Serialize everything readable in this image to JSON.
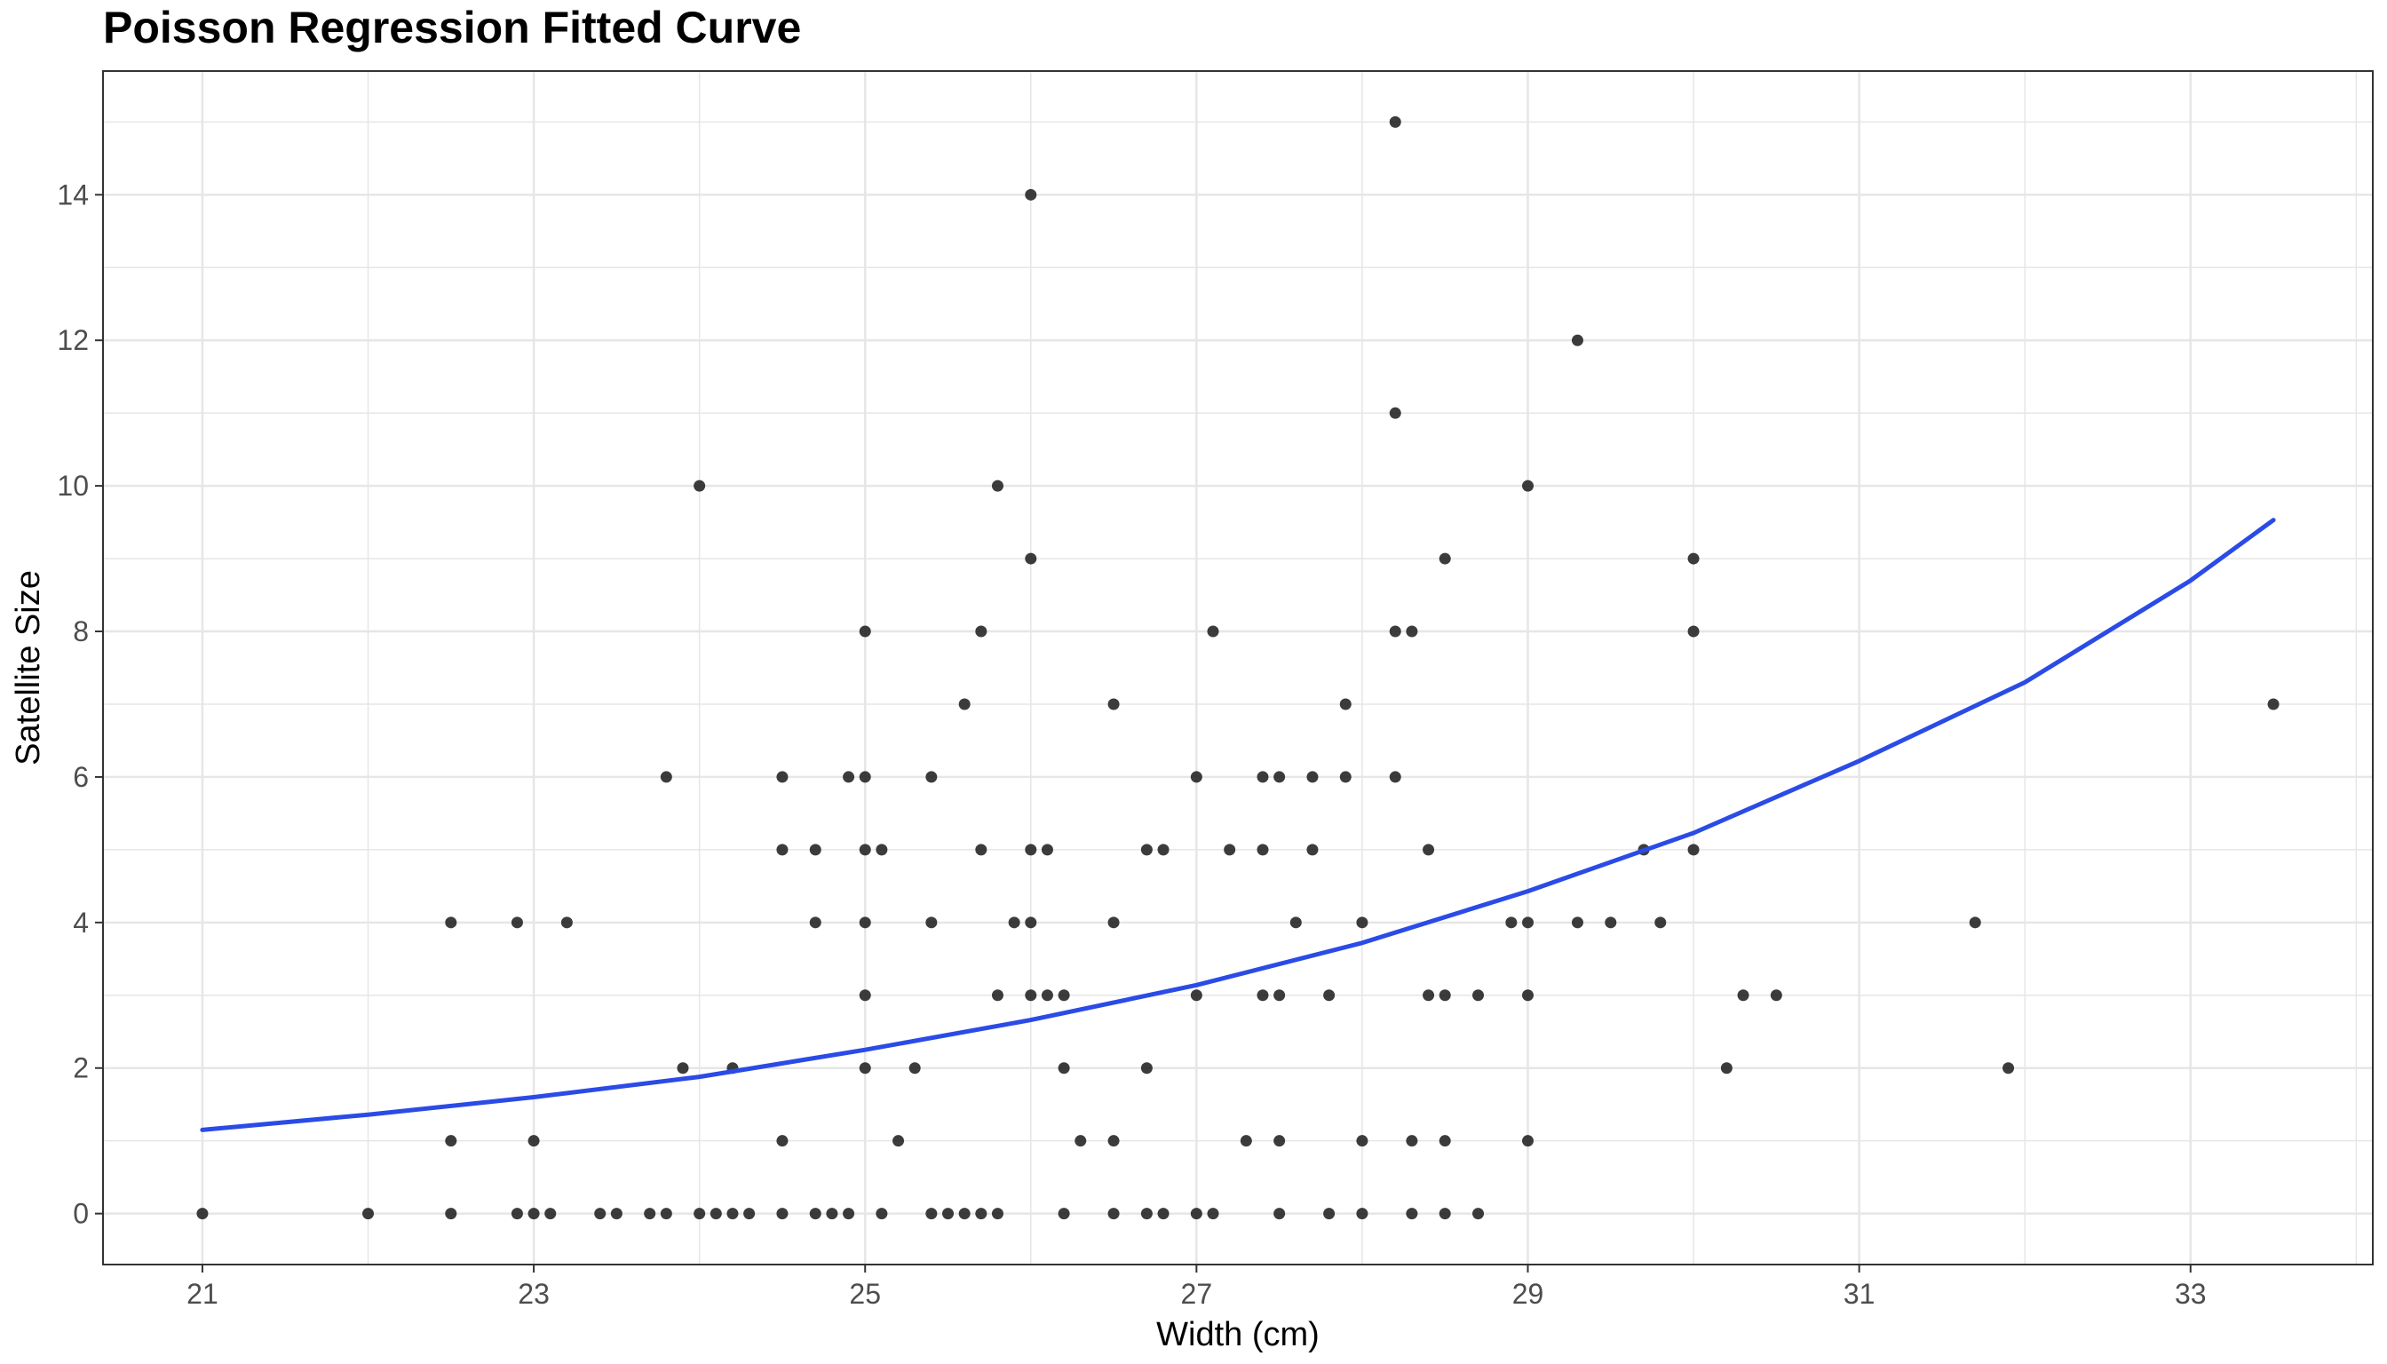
{
  "chart_data": {
    "type": "scatter",
    "title": "Poisson Regression Fitted Curve",
    "xlabel": "Width (cm)",
    "ylabel": "Satellite Size",
    "xlim": [
      20.4,
      34.1
    ],
    "ylim": [
      -0.7,
      15.7
    ],
    "x_ticks": [
      21,
      23,
      25,
      27,
      29,
      31,
      33
    ],
    "y_ticks": [
      0,
      2,
      4,
      6,
      8,
      10,
      12,
      14
    ],
    "grid": true,
    "legend": "none",
    "colors": {
      "points": "#1a1a1a",
      "curve": "#2a4be6",
      "panel_border": "#333333",
      "grid": "#e6e6e6"
    },
    "series": [
      {
        "kind": "points",
        "x": [
          21.0,
          22.0,
          22.5,
          22.5,
          22.5,
          22.9,
          22.9,
          23.0,
          23.0,
          23.1,
          23.2,
          23.4,
          23.5,
          23.7,
          23.8,
          23.8,
          23.9,
          24.0,
          24.0,
          24.1,
          24.2,
          24.2,
          24.3,
          24.5,
          24.5,
          24.5,
          24.5,
          24.7,
          24.7,
          24.7,
          24.8,
          24.9,
          24.9,
          25.0,
          25.0,
          25.0,
          25.0,
          25.0,
          25.0,
          25.1,
          25.1,
          25.2,
          25.3,
          25.4,
          25.4,
          25.4,
          25.5,
          25.6,
          25.6,
          25.7,
          25.7,
          25.7,
          25.8,
          25.8,
          25.8,
          25.9,
          26.0,
          26.0,
          26.0,
          26.0,
          26.0,
          26.1,
          26.1,
          26.2,
          26.2,
          26.2,
          26.3,
          26.5,
          26.5,
          26.5,
          26.5,
          26.7,
          26.7,
          26.7,
          26.8,
          26.8,
          27.0,
          27.0,
          27.0,
          27.1,
          27.1,
          27.2,
          27.3,
          27.4,
          27.4,
          27.4,
          27.5,
          27.5,
          27.5,
          27.5,
          27.6,
          27.7,
          27.7,
          27.8,
          27.8,
          27.9,
          27.9,
          28.0,
          28.0,
          28.0,
          28.2,
          28.2,
          28.2,
          28.2,
          28.3,
          28.3,
          28.3,
          28.4,
          28.4,
          28.5,
          28.5,
          28.5,
          28.5,
          28.7,
          28.7,
          28.9,
          29.0,
          29.0,
          29.0,
          29.0,
          29.3,
          29.3,
          29.5,
          29.7,
          29.8,
          30.0,
          30.0,
          30.0,
          30.2,
          30.3,
          30.5,
          31.7,
          31.9,
          33.5
        ],
        "y": [
          0,
          0,
          4,
          1,
          0,
          4,
          0,
          1,
          0,
          0,
          4,
          0,
          0,
          0,
          6,
          0,
          2,
          10,
          0,
          0,
          2,
          0,
          0,
          6,
          5,
          1,
          0,
          5,
          4,
          0,
          0,
          6,
          0,
          8,
          6,
          5,
          4,
          3,
          2,
          5,
          0,
          1,
          2,
          6,
          4,
          0,
          0,
          7,
          0,
          8,
          5,
          0,
          10,
          3,
          0,
          4,
          14,
          9,
          5,
          4,
          3,
          5,
          3,
          3,
          2,
          0,
          1,
          7,
          4,
          1,
          0,
          5,
          2,
          0,
          5,
          0,
          6,
          3,
          0,
          8,
          0,
          5,
          1,
          6,
          5,
          3,
          6,
          3,
          1,
          0,
          4,
          6,
          5,
          3,
          0,
          7,
          6,
          4,
          1,
          0,
          15,
          11,
          8,
          6,
          8,
          1,
          0,
          5,
          3,
          9,
          3,
          1,
          0,
          3,
          0,
          4,
          10,
          4,
          3,
          1,
          12,
          4,
          4,
          5,
          4,
          9,
          8,
          5,
          2,
          3,
          3,
          4,
          2,
          7
        ]
      },
      {
        "kind": "fitted-curve",
        "x": [
          21.0,
          22.0,
          23.0,
          24.0,
          25.0,
          26.0,
          27.0,
          28.0,
          29.0,
          30.0,
          31.0,
          32.0,
          33.0,
          33.5
        ],
        "y": [
          1.15,
          1.36,
          1.6,
          1.88,
          2.25,
          2.66,
          3.14,
          3.72,
          4.43,
          5.23,
          6.22,
          7.3,
          8.7,
          9.53
        ]
      }
    ]
  }
}
